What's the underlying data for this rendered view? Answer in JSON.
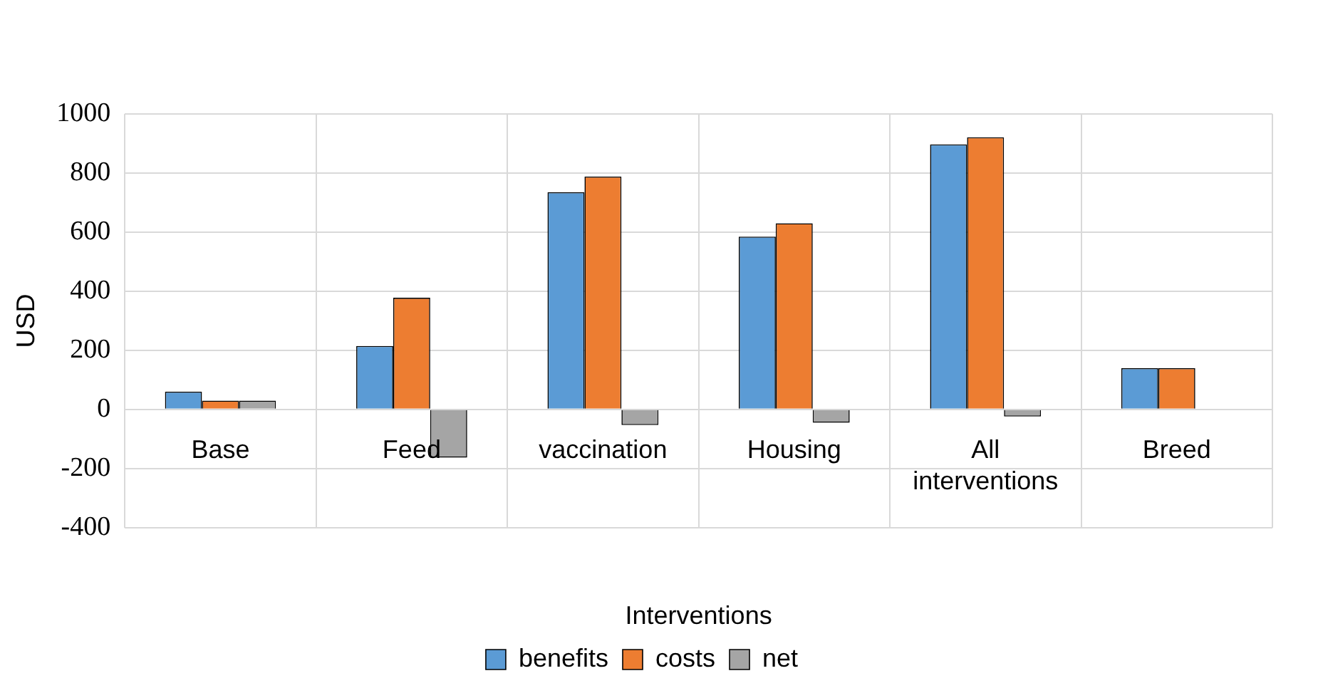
{
  "chart_data": {
    "type": "bar",
    "xlabel": "Interventions",
    "ylabel": "USD",
    "categories": [
      "Base",
      "Feed",
      "vaccination",
      "Housing",
      "All interventions",
      "Breed"
    ],
    "series": [
      {
        "name": "benefits",
        "color": "#5b9bd5",
        "values": [
          60,
          215,
          735,
          585,
          897,
          140
        ]
      },
      {
        "name": "costs",
        "color": "#ed7d31",
        "values": [
          30,
          378,
          788,
          630,
          921,
          140
        ]
      },
      {
        "name": "net",
        "color": "#a5a5a5",
        "values": [
          30,
          -163,
          -53,
          -45,
          -24,
          0
        ]
      }
    ],
    "ylim": [
      -400,
      1000
    ],
    "yticks": [
      -400,
      -200,
      0,
      200,
      400,
      600,
      800,
      1000
    ],
    "grid": true,
    "legend": "bottom"
  }
}
